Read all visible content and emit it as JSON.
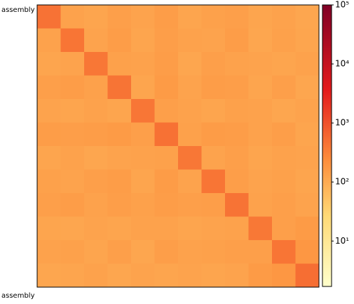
{
  "chart_data": {
    "type": "heatmap",
    "xlabel": "assembly",
    "ylabel": "assembly",
    "colormap": "YlOrRd",
    "log_scale": true,
    "clim": [
      1.7,
      100000
    ],
    "cticks": [
      {
        "value": 10,
        "label": "10¹"
      },
      {
        "value": 100,
        "label": "10²"
      },
      {
        "value": 1000,
        "label": "10³"
      },
      {
        "value": 10000,
        "label": "10⁴"
      },
      {
        "value": 100000,
        "label": "10⁵"
      }
    ],
    "z": [
      [
        450,
        130,
        120,
        140,
        125,
        150,
        120,
        135,
        140,
        120,
        130,
        115
      ],
      [
        130,
        420,
        125,
        150,
        120,
        145,
        130,
        125,
        150,
        115,
        135,
        120
      ],
      [
        120,
        125,
        400,
        135,
        130,
        150,
        115,
        140,
        130,
        125,
        120,
        130
      ],
      [
        140,
        150,
        135,
        430,
        120,
        160,
        125,
        150,
        145,
        120,
        140,
        115
      ],
      [
        125,
        120,
        130,
        120,
        410,
        140,
        130,
        120,
        135,
        130,
        115,
        125
      ],
      [
        150,
        145,
        150,
        160,
        140,
        460,
        135,
        155,
        150,
        130,
        145,
        120
      ],
      [
        120,
        130,
        115,
        125,
        130,
        135,
        400,
        125,
        140,
        120,
        130,
        125
      ],
      [
        135,
        125,
        140,
        150,
        120,
        155,
        125,
        420,
        145,
        125,
        135,
        120
      ],
      [
        140,
        150,
        130,
        145,
        135,
        150,
        140,
        145,
        440,
        130,
        140,
        125
      ],
      [
        120,
        115,
        125,
        120,
        130,
        130,
        120,
        125,
        130,
        390,
        140,
        160
      ],
      [
        130,
        135,
        120,
        140,
        115,
        145,
        130,
        135,
        140,
        140,
        420,
        180
      ],
      [
        115,
        120,
        130,
        115,
        125,
        120,
        125,
        120,
        125,
        160,
        180,
        500
      ]
    ]
  }
}
